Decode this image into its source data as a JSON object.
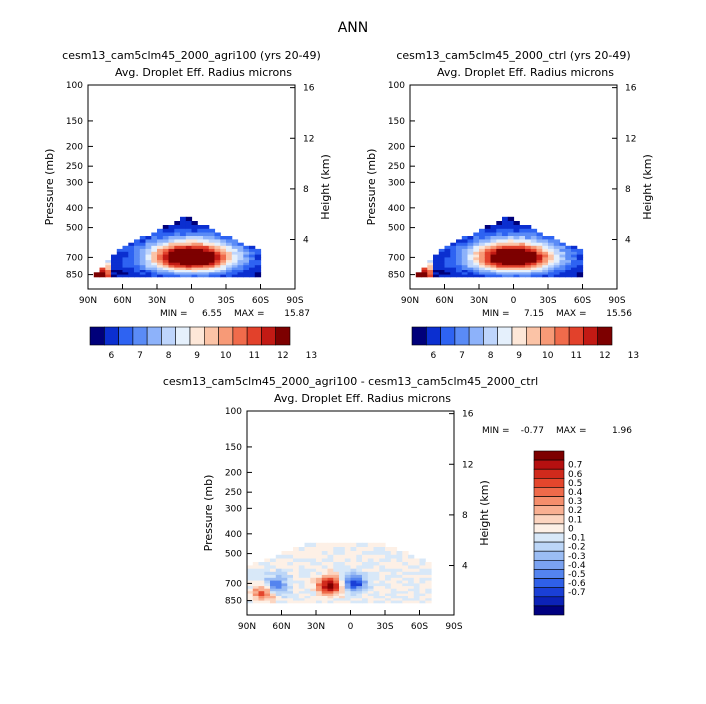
{
  "figure_title": "ANN",
  "chart_data": [
    {
      "type": "heatmap",
      "title": "cesm13_cam5clm45_2000_agri100 (yrs 20-49)",
      "subtitle_left": "Avg. Droplet Eff. Radius",
      "subtitle_right": "microns",
      "ylabel": "Pressure (mb)",
      "ylabel_right": "Height (km)",
      "xticks": [
        "90N",
        "60N",
        "30N",
        "0",
        "30S",
        "60S",
        "90S"
      ],
      "yticks": [
        "100",
        "150",
        "200",
        "250",
        "300",
        "400",
        "500",
        "700",
        "850"
      ],
      "yticks_right": [
        "16",
        "12",
        "8",
        "4"
      ],
      "ylim": [
        100,
        1000
      ],
      "min_label": "MIN =",
      "min": "6.55",
      "max_label": "MAX =",
      "max": "15.87",
      "colorbar_labels": [
        "6",
        "7",
        "8",
        "9",
        "10",
        "11",
        "12",
        "13"
      ],
      "colorbar_colors": [
        "#00007a",
        "#0b2fd0",
        "#2e63f2",
        "#5a8bf6",
        "#8db2fa",
        "#bed5fc",
        "#e5f0fc",
        "#fde7d8",
        "#fbc3a6",
        "#f79a77",
        "#f06b4b",
        "#e2412b",
        "#c21a14",
        "#7d0000"
      ],
      "value_range": [
        5.5,
        13.5
      ],
      "cloud_region": {
        "lat_north": 90,
        "lat_south": -60,
        "top_mb": 400,
        "bottom_mb": 880,
        "peak_lat": 0,
        "peak_mb": 700,
        "peak_value": 15.87
      }
    },
    {
      "type": "heatmap",
      "title": "cesm13_cam5clm45_2000_ctrl (yrs 20-49)",
      "subtitle_left": "Avg. Droplet Eff. Radius",
      "subtitle_right": "microns",
      "ylabel": "Pressure (mb)",
      "ylabel_right": "Height (km)",
      "xticks": [
        "90N",
        "60N",
        "30N",
        "0",
        "30S",
        "60S",
        "90S"
      ],
      "yticks": [
        "100",
        "150",
        "200",
        "250",
        "300",
        "400",
        "500",
        "700",
        "850"
      ],
      "yticks_right": [
        "16",
        "12",
        "8",
        "4"
      ],
      "ylim": [
        100,
        1000
      ],
      "min_label": "MIN =",
      "min": "7.15",
      "max_label": "MAX =",
      "max": "15.56",
      "colorbar_labels": [
        "6",
        "7",
        "8",
        "9",
        "10",
        "11",
        "12",
        "13"
      ],
      "colorbar_colors": [
        "#00007a",
        "#0b2fd0",
        "#2e63f2",
        "#5a8bf6",
        "#8db2fa",
        "#bed5fc",
        "#e5f0fc",
        "#fde7d8",
        "#fbc3a6",
        "#f79a77",
        "#f06b4b",
        "#e2412b",
        "#c21a14",
        "#7d0000"
      ],
      "value_range": [
        5.5,
        13.5
      ],
      "cloud_region": {
        "lat_north": 90,
        "lat_south": -60,
        "top_mb": 400,
        "bottom_mb": 880,
        "peak_lat": 0,
        "peak_mb": 700,
        "peak_value": 15.56
      }
    },
    {
      "type": "heatmap",
      "title": "cesm13_cam5clm45_2000_agri100 - cesm13_cam5clm45_2000_ctrl",
      "subtitle_left": "Avg. Droplet Eff. Radius",
      "subtitle_right": "microns",
      "ylabel": "Pressure (mb)",
      "ylabel_right": "Height (km)",
      "xticks": [
        "90N",
        "60N",
        "30N",
        "0",
        "30S",
        "60S",
        "90S"
      ],
      "yticks": [
        "100",
        "150",
        "200",
        "250",
        "300",
        "400",
        "500",
        "700",
        "850"
      ],
      "yticks_right": [
        "16",
        "12",
        "8",
        "4"
      ],
      "ylim": [
        100,
        1000
      ],
      "min_label": "MIN =",
      "min": "-0.77",
      "max_label": "MAX =",
      "max": "1.96",
      "colorbar_labels": [
        "0.7",
        "0.6",
        "0.5",
        "0.4",
        "0.3",
        "0.2",
        "0.1",
        "0",
        "-0.1",
        "-0.2",
        "-0.3",
        "-0.4",
        "-0.5",
        "-0.6",
        "-0.7"
      ],
      "colorbar_colors": [
        "#7d0000",
        "#b51010",
        "#d02a1c",
        "#e4462c",
        "#ef6a4a",
        "#f58e6c",
        "#f9b092",
        "#fcd5c0",
        "#fdf0e6",
        "#d8e8f8",
        "#bcd6f7",
        "#9bbdf4",
        "#7aa2f1",
        "#5484ef",
        "#2f60e8",
        "#1a3fd6",
        "#0c22b8",
        "#000080"
      ],
      "value_range": [
        -0.8,
        0.8
      ],
      "features": [
        {
          "lat": 18,
          "mb": 720,
          "value": 0.8
        },
        {
          "lat": 75,
          "mb": 780,
          "value": 0.5
        },
        {
          "lat": 65,
          "mb": 720,
          "value": -0.5
        },
        {
          "lat": -3,
          "mb": 700,
          "value": -0.6
        }
      ]
    }
  ]
}
